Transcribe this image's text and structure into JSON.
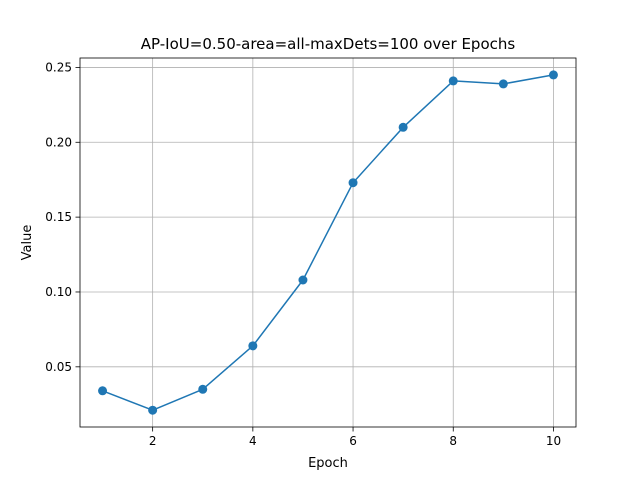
{
  "chart_data": {
    "type": "line",
    "title": "AP-IoU=0.50-area=all-maxDets=100 over Epochs",
    "xlabel": "Epoch",
    "ylabel": "Value",
    "x": [
      1,
      2,
      3,
      4,
      5,
      6,
      7,
      8,
      9,
      10
    ],
    "series": [
      {
        "values": [
          0.034,
          0.021,
          0.035,
          0.064,
          0.108,
          0.173,
          0.21,
          0.241,
          0.239,
          0.245
        ],
        "color": "#1f77b4",
        "marker": "circle"
      }
    ],
    "xlim": [
      0.55,
      10.45
    ],
    "ylim": [
      0.0098,
      0.2563
    ],
    "xticks": [
      2,
      4,
      6,
      8,
      10
    ],
    "xtick_labels": [
      "2",
      "4",
      "6",
      "8",
      "10"
    ],
    "yticks": [
      0.05,
      0.1,
      0.15,
      0.2,
      0.25
    ],
    "ytick_labels": [
      "0.05",
      "0.10",
      "0.15",
      "0.20",
      "0.25"
    ],
    "grid": true
  }
}
